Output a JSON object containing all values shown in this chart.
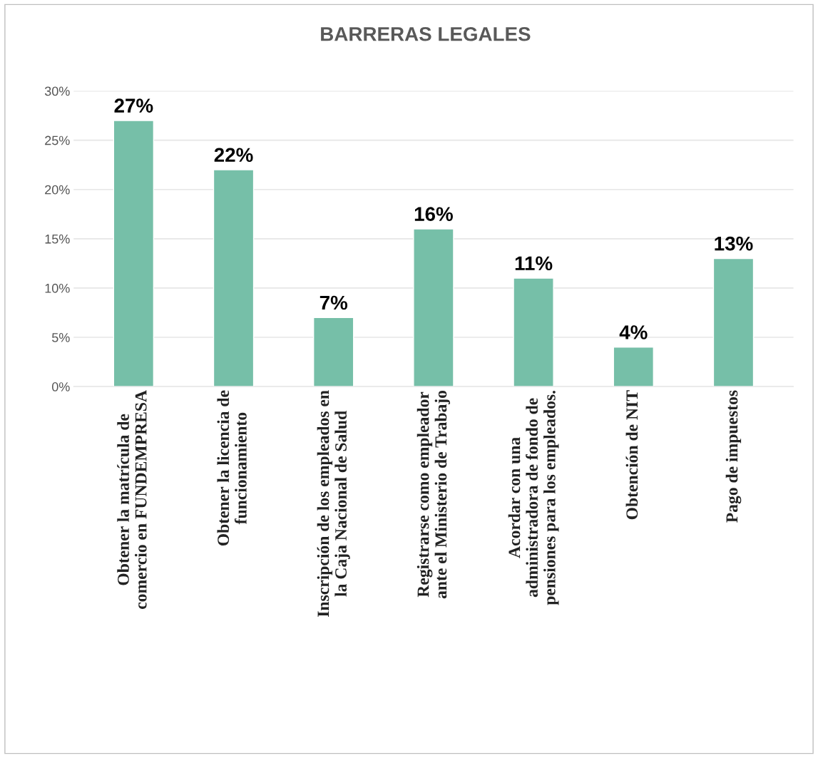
{
  "chart_data": {
    "type": "bar",
    "title": "BARRERAS LEGALES",
    "categories": [
      "Obtener la matrícula de\ncomercio en FUNDEMPRESA",
      "Obtener la licencia de\nfuncionamiento",
      "Inscripción de los empleados en\nla Caja Nacional de Salud",
      "Registrarse como empleador\nante el Ministerio de Trabajo",
      "Acordar con una\nadministradora de fondo de\npensiones para los empleados.",
      "Obtención de NIT",
      "Pago de impuestos"
    ],
    "values": [
      27,
      22,
      7,
      16,
      11,
      4,
      13
    ],
    "value_labels": [
      "27%",
      "22%",
      "7%",
      "16%",
      "11%",
      "4%",
      "13%"
    ],
    "color": "#76bfa8",
    "ylim": [
      0,
      30
    ],
    "yticks": [
      {
        "value": 0,
        "label": "0%"
      },
      {
        "value": 5,
        "label": "5%"
      },
      {
        "value": 10,
        "label": "10%"
      },
      {
        "value": 15,
        "label": "15%"
      },
      {
        "value": 20,
        "label": "20%"
      },
      {
        "value": 25,
        "label": "25%"
      },
      {
        "value": 30,
        "label": "30%"
      }
    ],
    "grid": "y"
  }
}
